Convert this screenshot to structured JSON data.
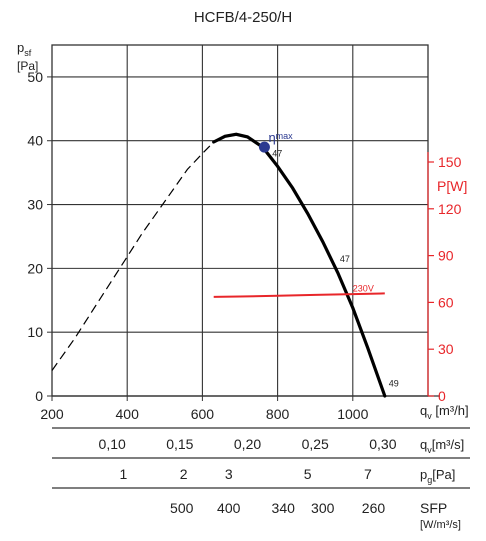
{
  "chart_data": {
    "type": "line",
    "title": "HCFB/4-250/H",
    "colors": {
      "curve": "#000000",
      "power": "#e8262a",
      "grid": "#333333",
      "marker": "#2b3990"
    },
    "y_axis": {
      "label_main": "p",
      "label_sub": "sf",
      "unit": "[Pa]",
      "ylim": [
        0,
        55
      ],
      "ticks": [
        0,
        10,
        20,
        30,
        40,
        50
      ]
    },
    "x_axis": {
      "label_main": "q",
      "label_sub": "v",
      "unit": "[m³/h]",
      "xlim": [
        200,
        1200
      ],
      "ticks": [
        200,
        400,
        600,
        800,
        1000
      ],
      "tick_labels": [
        "200",
        "400",
        "600",
        "800",
        "1000"
      ]
    },
    "power_axis": {
      "label": "P[W]",
      "ylim": [
        0,
        225
      ],
      "ticks": [
        0,
        30,
        60,
        90,
        120,
        150
      ]
    },
    "series": [
      {
        "style": "dashed",
        "x": [
          200,
          260,
          320,
          380,
          440,
          500,
          560,
          600,
          630
        ],
        "y": [
          4,
          9,
          14.5,
          20,
          25.5,
          30.5,
          35.5,
          38,
          39.8
        ]
      },
      {
        "style": "solid",
        "x": [
          630,
          660,
          690,
          720,
          760,
          800,
          840,
          880,
          920,
          960,
          1000,
          1040,
          1085
        ],
        "y": [
          39.8,
          40.7,
          41,
          40.6,
          39,
          36,
          32.6,
          28.6,
          24.2,
          19.3,
          13.8,
          7.5,
          0
        ]
      },
      {
        "name": "230V",
        "axis": "power",
        "x": [
          630,
          700,
          800,
          900,
          1000,
          1085
        ],
        "y": [
          63.5,
          63.8,
          64.2,
          64.8,
          65.3,
          65.8
        ]
      }
    ],
    "annotations": [
      {
        "text": "η",
        "sub": "max",
        "x": 765,
        "y": 39,
        "marker": true
      },
      {
        "text": "47",
        "x": 775,
        "y": 37.5
      },
      {
        "text": "47",
        "x": 955,
        "y": 21
      },
      {
        "text": "49",
        "x": 1085,
        "y": 1.5
      },
      {
        "text": "230V",
        "x": 1000,
        "y": 67,
        "axis": "power"
      }
    ],
    "aux_scales": [
      {
        "label_main": "q",
        "label_sub": "v",
        "unit": "[m³/s]",
        "labels": [
          "0,10",
          "0,15",
          "0,20",
          "0,25",
          "0,30"
        ],
        "x_at": [
          360,
          540,
          720,
          900,
          1080
        ]
      },
      {
        "label_main": "p",
        "label_sub": "g",
        "unit": "[Pa]",
        "labels": [
          "1",
          "2",
          "3",
          "5",
          "7"
        ],
        "x_at": [
          390,
          550,
          670,
          880,
          1040
        ]
      },
      {
        "label_main": "SFP",
        "label_sub": "",
        "unit": "[W/m³/s]",
        "labels": [
          "500",
          "400",
          "340",
          "300",
          "260"
        ],
        "x_at": [
          545,
          670,
          815,
          920,
          1055
        ]
      }
    ]
  }
}
